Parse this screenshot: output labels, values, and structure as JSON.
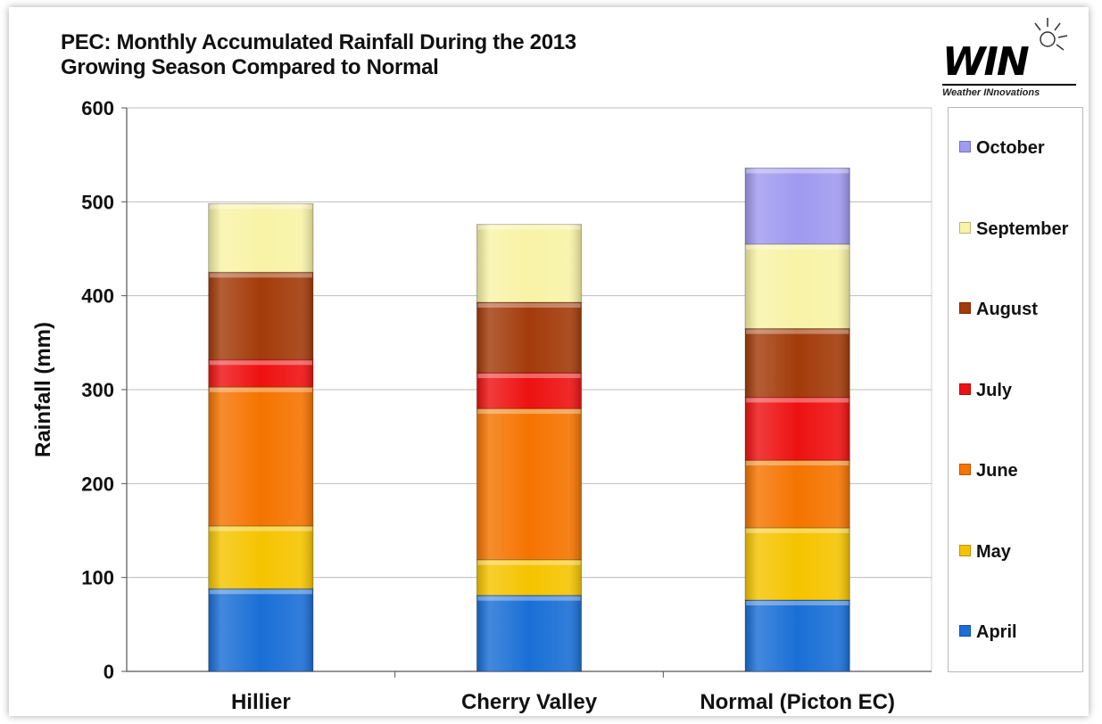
{
  "chart_data": {
    "type": "bar",
    "stacked": true,
    "title": "PEC: Monthly Accumulated Rainfall During the 2013 Growing Season Compared to Normal",
    "title_lines": [
      "PEC: Monthly Accumulated Rainfall During the 2013",
      "Growing Season Compared to Normal"
    ],
    "xlabel": "",
    "ylabel": "Rainfall (mm)",
    "ylim": [
      0,
      600
    ],
    "yticks": [
      0,
      100,
      200,
      300,
      400,
      500,
      600
    ],
    "grid": true,
    "legend_position": "right",
    "categories": [
      "Hillier",
      "Cherry Valley",
      "Normal (Picton EC)"
    ],
    "series": [
      {
        "name": "April",
        "color": "#1a6fd6",
        "values": [
          88,
          81,
          76
        ]
      },
      {
        "name": "May",
        "color": "#f5c400",
        "values": [
          67,
          38,
          77
        ]
      },
      {
        "name": "June",
        "color": "#f57400",
        "values": [
          148,
          161,
          72
        ]
      },
      {
        "name": "July",
        "color": "#ee1111",
        "values": [
          29,
          38,
          67
        ]
      },
      {
        "name": "August",
        "color": "#a33b0a",
        "values": [
          93,
          75,
          73
        ]
      },
      {
        "name": "September",
        "color": "#f8f3a6",
        "values": [
          73,
          83,
          90
        ]
      },
      {
        "name": "October",
        "color": "#a09af0",
        "values": [
          0,
          0,
          81
        ]
      }
    ]
  },
  "logo": {
    "text": "WIN",
    "tagline": "Weather INnovations"
  }
}
